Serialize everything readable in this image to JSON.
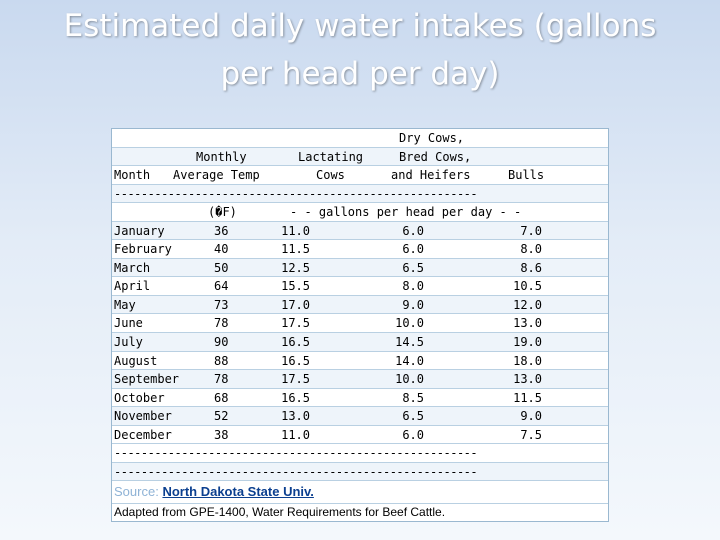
{
  "title_line1": "Estimated daily water intakes (gallons",
  "title_line2": "per head per day)",
  "headers": {
    "row1": {
      "dry": "Dry Cows,"
    },
    "row2": {
      "monthly": "Monthly",
      "lactating": "Lactating",
      "bred": "Bred Cows,"
    },
    "row3": {
      "month": "Month",
      "avg_temp": "Average Temp",
      "cows": "Cows",
      "heifers": "and Heifers",
      "bulls": "Bulls"
    }
  },
  "divider": "------------------------------------------------------",
  "units": {
    "temp": "(�F)",
    "gallons": "- - gallons per head per day - -"
  },
  "rows": [
    {
      "month": "January",
      "temp": "36",
      "lact": "11.0",
      "dry": "6.0",
      "bulls": "7.0"
    },
    {
      "month": "February",
      "temp": "40",
      "lact": "11.5",
      "dry": "6.0",
      "bulls": "8.0"
    },
    {
      "month": "March",
      "temp": "50",
      "lact": "12.5",
      "dry": "6.5",
      "bulls": "8.6"
    },
    {
      "month": "April",
      "temp": "64",
      "lact": "15.5",
      "dry": "8.0",
      "bulls": "10.5"
    },
    {
      "month": "May",
      "temp": "73",
      "lact": "17.0",
      "dry": "9.0",
      "bulls": "12.0"
    },
    {
      "month": "June",
      "temp": "78",
      "lact": "17.5",
      "dry": "10.0",
      "bulls": "13.0"
    },
    {
      "month": "July",
      "temp": "90",
      "lact": "16.5",
      "dry": "14.5",
      "bulls": "19.0"
    },
    {
      "month": "August",
      "temp": "88",
      "lact": "16.5",
      "dry": "14.0",
      "bulls": "18.0"
    },
    {
      "month": "September",
      "temp": "78",
      "lact": "17.5",
      "dry": "10.0",
      "bulls": "13.0"
    },
    {
      "month": "October",
      "temp": "68",
      "lact": "16.5",
      "dry": "8.5",
      "bulls": "11.5"
    },
    {
      "month": "November",
      "temp": "52",
      "lact": "13.0",
      "dry": "6.5",
      "bulls": "9.0"
    },
    {
      "month": "December",
      "temp": "38",
      "lact": "11.0",
      "dry": "6.0",
      "bulls": "7.5"
    }
  ],
  "source_label": "Source:",
  "source_link": "North Dakota State Univ.",
  "note": "Adapted from GPE-1400, Water Requirements for Beef Cattle."
}
